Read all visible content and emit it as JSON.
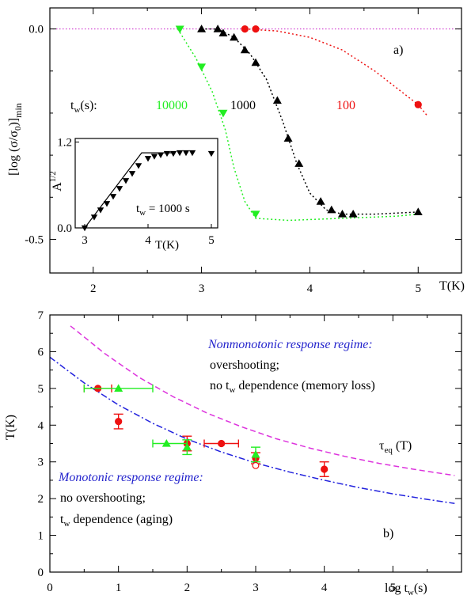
{
  "chart_data": [
    {
      "type": "scatter",
      "panel_label": "a)",
      "xlabel": "T(K)",
      "ylabel": "[log (σ/σ0)]min",
      "xlim": [
        1.6,
        5.4
      ],
      "ylim": [
        -0.58,
        0.05
      ],
      "x_ticks": [
        "2",
        "3",
        "4",
        "5"
      ],
      "y_ticks": [
        "0.0",
        "-0.5"
      ],
      "tw_prefix": "tw(s):",
      "grid": false,
      "reference_line": {
        "y": 0.0,
        "color": "#cc33cc"
      },
      "series": [
        {
          "name": "10000",
          "color": "#22ee22",
          "marker": "triangle-down",
          "points": [
            [
              2.8,
              0.0
            ],
            [
              3.0,
              -0.09
            ],
            [
              3.2,
              -0.2
            ],
            [
              3.5,
              -0.44
            ]
          ],
          "fit_curve": [
            [
              2.78,
              0.0
            ],
            [
              2.95,
              -0.07
            ],
            [
              3.1,
              -0.15
            ],
            [
              3.22,
              -0.24
            ],
            [
              3.3,
              -0.33
            ],
            [
              3.4,
              -0.41
            ],
            [
              3.5,
              -0.45
            ],
            [
              3.8,
              -0.455
            ],
            [
              4.3,
              -0.45
            ],
            [
              4.8,
              -0.445
            ],
            [
              5.0,
              -0.44
            ]
          ]
        },
        {
          "name": "1000",
          "color": "#000000",
          "marker": "triangle-up",
          "points": [
            [
              3.0,
              0.0
            ],
            [
              3.15,
              0.0
            ],
            [
              3.2,
              -0.01
            ],
            [
              3.3,
              -0.02
            ],
            [
              3.4,
              -0.05
            ],
            [
              3.5,
              -0.08
            ],
            [
              3.7,
              -0.17
            ],
            [
              3.8,
              -0.26
            ],
            [
              3.9,
              -0.32
            ],
            [
              4.1,
              -0.41
            ],
            [
              4.2,
              -0.43
            ],
            [
              4.3,
              -0.44
            ],
            [
              4.4,
              -0.44
            ],
            [
              5.0,
              -0.435
            ]
          ],
          "fit_curve": [
            [
              3.0,
              0.0
            ],
            [
              3.15,
              0.0
            ],
            [
              3.3,
              -0.02
            ],
            [
              3.45,
              -0.06
            ],
            [
              3.6,
              -0.12
            ],
            [
              3.75,
              -0.22
            ],
            [
              3.88,
              -0.32
            ],
            [
              4.0,
              -0.39
            ],
            [
              4.15,
              -0.43
            ],
            [
              4.3,
              -0.44
            ],
            [
              4.6,
              -0.44
            ],
            [
              5.0,
              -0.435
            ]
          ]
        },
        {
          "name": "100",
          "color": "#ee1111",
          "marker": "circle",
          "points": [
            [
              3.4,
              0.0
            ],
            [
              3.5,
              0.0
            ],
            [
              5.0,
              -0.18
            ]
          ],
          "fit_curve": [
            [
              3.4,
              0.0
            ],
            [
              3.7,
              -0.005
            ],
            [
              4.0,
              -0.02
            ],
            [
              4.3,
              -0.05
            ],
            [
              4.6,
              -0.1
            ],
            [
              4.85,
              -0.15
            ],
            [
              5.0,
              -0.18
            ],
            [
              5.08,
              -0.205
            ]
          ]
        }
      ],
      "inset": {
        "ylabel": "A1/2",
        "xlabel": "T(K)",
        "annotation": "tw = 1000 s",
        "xlim": [
          2.85,
          5.1
        ],
        "ylim": [
          0,
          1.25
        ],
        "x_ticks": [
          "3",
          "4",
          "5"
        ],
        "y_ticks": [
          "0.0",
          "1.2"
        ],
        "points": [
          [
            3.0,
            0.0
          ],
          [
            3.15,
            0.15
          ],
          [
            3.25,
            0.25
          ],
          [
            3.35,
            0.34
          ],
          [
            3.45,
            0.44
          ],
          [
            3.55,
            0.55
          ],
          [
            3.65,
            0.66
          ],
          [
            3.75,
            0.76
          ],
          [
            3.85,
            0.87
          ],
          [
            4.0,
            0.97
          ],
          [
            4.1,
            1.0
          ],
          [
            4.2,
            1.02
          ],
          [
            4.3,
            1.04
          ],
          [
            4.4,
            1.04
          ],
          [
            4.5,
            1.05
          ],
          [
            4.6,
            1.05
          ],
          [
            4.7,
            1.05
          ],
          [
            5.0,
            1.04
          ]
        ],
        "fit_line": [
          [
            3.0,
            0.0
          ],
          [
            3.9,
            1.05
          ],
          [
            4.4,
            1.05
          ]
        ]
      }
    },
    {
      "type": "scatter",
      "panel_label": "b)",
      "xlabel": "log tw(s)",
      "ylabel": "T(K)",
      "xlim": [
        0,
        6
      ],
      "ylim": [
        0,
        7
      ],
      "x_ticks": [
        "0",
        "1",
        "2",
        "3",
        "4",
        "5"
      ],
      "y_ticks": [
        "0",
        "1",
        "2",
        "3",
        "4",
        "5",
        "6",
        "7"
      ],
      "grid": false,
      "series": [
        {
          "name": "red circles",
          "color": "#ee1111",
          "marker": "circle",
          "points": [
            {
              "x": 0.7,
              "y": 5.0,
              "xerr": [
                0.5,
                0.9
              ]
            },
            {
              "x": 1.0,
              "y": 4.1,
              "yerr": [
                3.9,
                4.3
              ]
            },
            {
              "x": 2.0,
              "y": 3.5,
              "yerr": [
                3.3,
                3.7
              ]
            },
            {
              "x": 2.5,
              "y": 3.5,
              "xerr": [
                2.25,
                2.75
              ]
            },
            {
              "x": 3.0,
              "y": 3.1,
              "yerr": [
                2.95,
                3.25
              ]
            },
            {
              "x": 4.0,
              "y": 2.8,
              "yerr": [
                2.6,
                3.0
              ]
            }
          ]
        },
        {
          "name": "green triangles",
          "color": "#22ee22",
          "marker": "triangle-up",
          "points": [
            {
              "x": 1.0,
              "y": 5.0,
              "xerr": [
                0.5,
                1.5
              ]
            },
            {
              "x": 1.7,
              "y": 3.5,
              "xerr": [
                1.5,
                2.0
              ]
            },
            {
              "x": 2.0,
              "y": 3.4,
              "yerr": [
                3.2,
                3.6
              ]
            },
            {
              "x": 3.0,
              "y": 3.2,
              "yerr": [
                3.0,
                3.4
              ]
            }
          ]
        },
        {
          "name": "open circle",
          "color": "#ee1111",
          "marker": "open-circle",
          "points": [
            {
              "x": 3.0,
              "y": 2.9
            }
          ]
        }
      ],
      "curves": [
        {
          "name": "tau_eq",
          "label": "τeq (T)",
          "color": "#dd33dd",
          "dash": "dashed",
          "points": [
            [
              0.3,
              6.7
            ],
            [
              0.8,
              5.95
            ],
            [
              1.3,
              5.3
            ],
            [
              1.8,
              4.77
            ],
            [
              2.3,
              4.32
            ],
            [
              2.8,
              3.95
            ],
            [
              3.3,
              3.63
            ],
            [
              3.8,
              3.37
            ],
            [
              4.3,
              3.15
            ],
            [
              4.8,
              2.96
            ],
            [
              5.3,
              2.8
            ],
            [
              5.9,
              2.63
            ]
          ]
        },
        {
          "name": "boundary",
          "color": "#2222dd",
          "dash": "dashdot",
          "points": [
            [
              0.0,
              5.85
            ],
            [
              0.5,
              5.15
            ],
            [
              1.0,
              4.55
            ],
            [
              1.5,
              4.05
            ],
            [
              2.0,
              3.62
            ],
            [
              2.5,
              3.27
            ],
            [
              3.0,
              2.97
            ],
            [
              3.5,
              2.72
            ],
            [
              4.0,
              2.5
            ],
            [
              4.5,
              2.3
            ],
            [
              5.0,
              2.13
            ],
            [
              5.5,
              1.98
            ],
            [
              5.9,
              1.87
            ]
          ]
        }
      ],
      "annotations": {
        "nonmono_title": "Nonmonotonic response regime:",
        "nonmono_line1": "overshooting;",
        "nonmono_line2": "no tw dependence (memory loss)",
        "mono_title": "Monotonic response regime:",
        "mono_line1": "no overshooting;",
        "mono_line2": "tw dependence (aging)",
        "regime_color": "#2222cc"
      }
    }
  ]
}
